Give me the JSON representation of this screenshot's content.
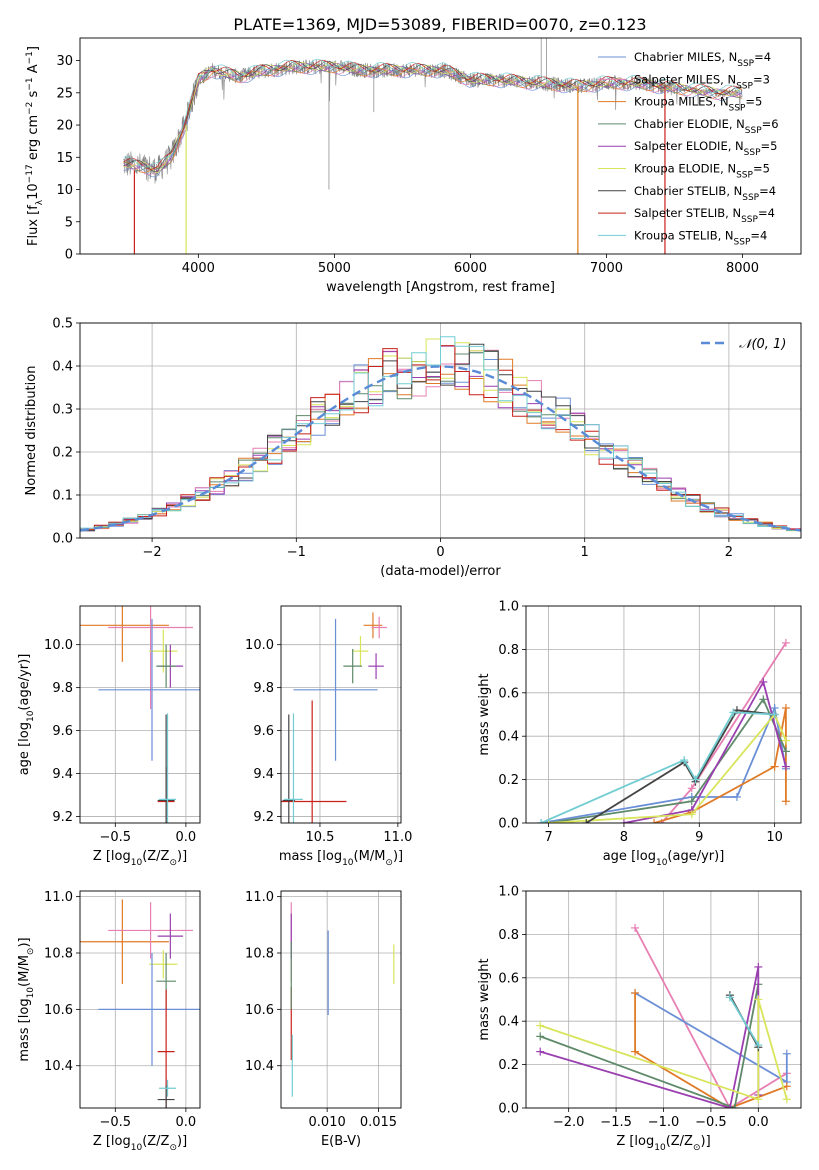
{
  "title": "PLATE=1369, MJD=53089, FIBERID=0070, z=0.123",
  "colors": {
    "chabrier_miles": "#6b8fd6",
    "salpeter_miles": "#e77fb3",
    "kroupa_miles": "#e07a26",
    "chabrier_elodie": "#5f8a6a",
    "salpeter_elodie": "#9a3fb0",
    "kroupa_elodie": "#d8e55a",
    "chabrier_stelib": "#444444",
    "salpeter_stelib": "#c8201a",
    "kroupa_stelib": "#72cdd3",
    "gaussian": "#5a8bd6",
    "grid": "#b0b0b0"
  },
  "chart_data": [
    {
      "id": "spectrum",
      "type": "line",
      "xlabel": "wavelength [Angstrom, rest frame]",
      "ylabel": "Flux [fλ10⁻¹⁷ erg cm⁻² s⁻¹ A⁻¹]",
      "xlim": [
        3130,
        8430
      ],
      "ylim": [
        0,
        33.5
      ],
      "xticks": [
        4000,
        5000,
        6000,
        7000,
        8000
      ],
      "yticks": [
        0,
        5,
        10,
        15,
        20,
        25,
        30
      ],
      "legend_position": "top-right",
      "legend": [
        "Chabrier MILES, N_SSP=4",
        "Salpeter MILES, N_SSP=3",
        "Kroupa MILES, N_SSP=5",
        "Chabrier ELODIE, N_SSP=6",
        "Salpeter ELODIE, N_SSP=5",
        "Kroupa ELODIE, N_SSP=5",
        "Chabrier STELIB, N_SSP=4",
        "Salpeter STELIB, N_SSP=4",
        "Kroupa STELIB, N_SSP=4"
      ],
      "observed_envelope": {
        "x": [
          3450,
          3600,
          3700,
          3800,
          3900,
          4000,
          4100,
          4300,
          4500,
          4700,
          5000,
          5200,
          5400,
          5600,
          5800,
          6000,
          6200,
          6500,
          6800,
          7000,
          7200,
          7400,
          7600,
          7800,
          8000
        ],
        "y": [
          14.0,
          13.5,
          13.0,
          15.0,
          20.0,
          27.0,
          28.5,
          27.5,
          28.5,
          29.0,
          29.0,
          28.5,
          28.5,
          28.5,
          28.5,
          27.0,
          27.0,
          26.5,
          26.0,
          26.5,
          26.5,
          26.0,
          25.5,
          25.0,
          25.0
        ]
      },
      "model_dropouts": [
        {
          "model": "salpeter_stelib",
          "x": 3530,
          "y_min": 0,
          "y_max": 13
        },
        {
          "model": "kroupa_elodie",
          "x": 3910,
          "y_min": 0,
          "y_max": 20
        },
        {
          "model": "kroupa_elodie",
          "x": 6790,
          "y_min": 0,
          "y_max": 26
        },
        {
          "model": "kroupa_miles",
          "x": 6790,
          "y_min": 0,
          "y_max": 26
        },
        {
          "model": "salpeter_stelib",
          "x": 7430,
          "y_min": 0,
          "y_max": 26
        }
      ]
    },
    {
      "id": "residuals",
      "type": "line",
      "xlabel": "(data-model)/error",
      "ylabel": "Normed distribution",
      "xlim": [
        -2.5,
        2.5
      ],
      "ylim": [
        0,
        0.5
      ],
      "xticks": [
        -2,
        -1,
        0,
        1,
        2
      ],
      "yticks": [
        0.0,
        0.1,
        0.2,
        0.3,
        0.4,
        0.5
      ],
      "legend": [
        "𝒩(0, 1)"
      ],
      "legend_position": "top-right"
    },
    {
      "id": "age_vs_z",
      "type": "scatter",
      "xlabel": "Z [log₁₀(Z/Z⊙)]",
      "ylabel": "age  [log₁₀(age/yr)]",
      "xlim": [
        -0.75,
        0.1
      ],
      "ylim": [
        9.17,
        10.18
      ],
      "xticks": [
        -0.5,
        0.0
      ],
      "yticks": [
        9.2,
        9.4,
        9.6,
        9.8,
        10.0
      ],
      "points": [
        {
          "model": "kroupa_miles",
          "x": -0.45,
          "xerr": 0.33,
          "y": 10.09,
          "yerr": 0.17
        },
        {
          "model": "salpeter_miles",
          "x": -0.25,
          "xerr": 0.3,
          "y": 10.08,
          "yerr": 0.38
        },
        {
          "model": "kroupa_elodie",
          "x": -0.16,
          "xerr": 0.1,
          "y": 9.97,
          "yerr": 0.1
        },
        {
          "model": "salpeter_elodie",
          "x": -0.11,
          "xerr": 0.09,
          "y": 9.9,
          "yerr": 0.1
        },
        {
          "model": "chabrier_miles",
          "x": -0.24,
          "xerr": 0.38,
          "y": 9.79,
          "yerr": 0.33
        },
        {
          "model": "chabrier_elodie",
          "x": -0.14,
          "xerr": 0.07,
          "y": 9.9,
          "yerr": 0.1
        },
        {
          "model": "salpeter_stelib",
          "x": -0.14,
          "xerr": 0.06,
          "y": 9.27,
          "yerr": 0.16
        },
        {
          "model": "chabrier_stelib",
          "x": -0.14,
          "xerr": 0.06,
          "y": 9.275,
          "yerr": 0.4
        },
        {
          "model": "kroupa_stelib",
          "x": -0.13,
          "xerr": 0.06,
          "y": 9.28,
          "yerr": 0.4
        }
      ]
    },
    {
      "id": "age_vs_mass",
      "type": "scatter",
      "xlabel": "mass [log₁₀(M/M⊙)]",
      "ylabel": "",
      "xlim": [
        10.25,
        11.02
      ],
      "ylim": [
        9.17,
        10.18
      ],
      "xticks": [
        10.5,
        11.0
      ],
      "yticks": [
        9.2,
        9.4,
        9.6,
        9.8,
        10.0
      ],
      "points": [
        {
          "model": "kroupa_miles",
          "x": 10.84,
          "xerr": 0.06,
          "y": 10.09,
          "yerr": 0.06
        },
        {
          "model": "salpeter_miles",
          "x": 10.88,
          "xerr": 0.05,
          "y": 10.08,
          "yerr": 0.05
        },
        {
          "model": "kroupa_elodie",
          "x": 10.76,
          "xerr": 0.05,
          "y": 9.97,
          "yerr": 0.07
        },
        {
          "model": "salpeter_elodie",
          "x": 10.86,
          "xerr": 0.05,
          "y": 9.9,
          "yerr": 0.06
        },
        {
          "model": "chabrier_miles",
          "x": 10.6,
          "xerr": 0.27,
          "y": 9.79,
          "yerr": 0.33
        },
        {
          "model": "chabrier_elodie",
          "x": 10.71,
          "xerr": 0.06,
          "y": 9.9,
          "yerr": 0.08
        },
        {
          "model": "salpeter_stelib",
          "x": 10.45,
          "xerr": 0.22,
          "y": 9.27,
          "yerr": 0.47
        },
        {
          "model": "chabrier_stelib",
          "x": 10.3,
          "xerr": 0.04,
          "y": 9.275,
          "yerr": 0.4
        },
        {
          "model": "kroupa_stelib",
          "x": 10.33,
          "xerr": 0.06,
          "y": 9.28,
          "yerr": 0.4
        }
      ]
    },
    {
      "id": "weight_vs_age",
      "type": "line",
      "xlabel": "age  [log₁₀(age/yr)]",
      "ylabel": "mass weight",
      "xlim": [
        6.7,
        10.35
      ],
      "ylim": [
        0,
        1
      ],
      "xticks": [
        7,
        8,
        9,
        10
      ],
      "yticks": [
        0.0,
        0.2,
        0.4,
        0.6,
        0.8,
        1.0
      ],
      "series": [
        {
          "model": "salpeter_miles",
          "x": [
            8.5,
            8.9,
            10.15
          ],
          "y": [
            0.0,
            0.16,
            0.83
          ]
        },
        {
          "model": "chabrier_miles",
          "x": [
            6.9,
            8.9,
            9.5,
            10.0,
            10.15
          ],
          "y": [
            0.0,
            0.12,
            0.12,
            0.53,
            0.25
          ]
        },
        {
          "model": "kroupa_miles",
          "x": [
            8.4,
            8.9,
            10.0,
            10.15,
            10.15
          ],
          "y": [
            0.0,
            0.05,
            0.26,
            0.53,
            0.1
          ]
        },
        {
          "model": "chabrier_elodie",
          "x": [
            7.0,
            8.9,
            9.85,
            10.15
          ],
          "y": [
            0.0,
            0.1,
            0.57,
            0.33
          ]
        },
        {
          "model": "salpeter_elodie",
          "x": [
            8.0,
            8.9,
            9.85,
            10.15
          ],
          "y": [
            0.0,
            0.06,
            0.65,
            0.26
          ]
        },
        {
          "model": "kroupa_elodie",
          "x": [
            7.0,
            8.9,
            10.0,
            10.15
          ],
          "y": [
            0.0,
            0.04,
            0.5,
            0.38
          ]
        },
        {
          "model": "chabrier_stelib",
          "x": [
            7.5,
            8.8,
            8.95,
            9.5,
            10.0
          ],
          "y": [
            0.0,
            0.28,
            0.19,
            0.52,
            0.5
          ]
        },
        {
          "model": "kroupa_stelib",
          "x": [
            6.9,
            8.8,
            8.95,
            9.45,
            10.0
          ],
          "y": [
            0.0,
            0.29,
            0.2,
            0.51,
            0.5
          ]
        }
      ]
    },
    {
      "id": "mass_vs_z",
      "type": "scatter",
      "xlabel": "Z [log₁₀(Z/Z⊙)]",
      "ylabel": "mass [log₁₀(M/M⊙)]",
      "xlim": [
        -0.75,
        0.1
      ],
      "ylim": [
        10.25,
        11.02
      ],
      "xticks": [
        -0.5,
        0.0
      ],
      "yticks": [
        10.4,
        10.6,
        10.8,
        11.0
      ],
      "points": [
        {
          "model": "kroupa_miles",
          "x": -0.45,
          "xerr": 0.33,
          "y": 10.84,
          "yerr": 0.15
        },
        {
          "model": "salpeter_miles",
          "x": -0.25,
          "xerr": 0.3,
          "y": 10.88,
          "yerr": 0.1
        },
        {
          "model": "kroupa_elodie",
          "x": -0.16,
          "xerr": 0.1,
          "y": 10.76,
          "yerr": 0.05
        },
        {
          "model": "salpeter_elodie",
          "x": -0.11,
          "xerr": 0.09,
          "y": 10.86,
          "yerr": 0.08
        },
        {
          "model": "chabrier_miles",
          "x": -0.24,
          "xerr": 0.38,
          "y": 10.6,
          "yerr": 0.2
        },
        {
          "model": "chabrier_elodie",
          "x": -0.14,
          "xerr": 0.07,
          "y": 10.7,
          "yerr": 0.1
        },
        {
          "model": "salpeter_stelib",
          "x": -0.14,
          "xerr": 0.06,
          "y": 10.45,
          "yerr": 0.22
        },
        {
          "model": "chabrier_stelib",
          "x": -0.14,
          "xerr": 0.06,
          "y": 10.28,
          "yerr": 0.05
        },
        {
          "model": "kroupa_stelib",
          "x": -0.13,
          "xerr": 0.06,
          "y": 10.32,
          "yerr": 0.03
        }
      ]
    },
    {
      "id": "mass_vs_ebv",
      "type": "scatter",
      "xlabel": "E(B-V)",
      "ylabel": "",
      "xlim": [
        0.0055,
        0.0172
      ],
      "ylim": [
        10.25,
        11.02
      ],
      "xticks": [
        0.01,
        0.015
      ],
      "yticks": [
        10.4,
        10.6,
        10.8,
        11.0
      ],
      "points": [
        {
          "model": "salpeter_miles",
          "x": 0.0065,
          "y": 10.84,
          "yerr": 0.14
        },
        {
          "model": "salpeter_elodie",
          "x": 0.0065,
          "y": 10.86,
          "yerr": 0.08
        },
        {
          "model": "salpeter_stelib",
          "x": 0.0065,
          "y": 10.55,
          "yerr": 0.13
        },
        {
          "model": "chabrier_elodie",
          "x": 0.0065,
          "y": 10.72,
          "yerr": 0.12
        },
        {
          "model": "kroupa_stelib",
          "x": 0.0066,
          "y": 10.4,
          "yerr": 0.11
        },
        {
          "model": "chabrier_miles",
          "x": 0.0101,
          "y": 10.73,
          "yerr": 0.15
        },
        {
          "model": "kroupa_elodie",
          "x": 0.0165,
          "y": 10.76,
          "yerr": 0.07
        }
      ]
    },
    {
      "id": "weight_vs_z",
      "type": "line",
      "xlabel": "Z [log₁₀(Z/Z⊙)]",
      "ylabel": "mass weight",
      "xlim": [
        -2.45,
        0.45
      ],
      "ylim": [
        0,
        1
      ],
      "xticks": [
        -2.0,
        -1.5,
        -1.0,
        -0.5,
        0.0
      ],
      "yticks": [
        0.0,
        0.2,
        0.4,
        0.6,
        0.8,
        1.0
      ],
      "series": [
        {
          "model": "salpeter_miles",
          "x": [
            -1.3,
            -0.3,
            0.3
          ],
          "y": [
            0.83,
            0.0,
            0.16
          ]
        },
        {
          "model": "chabrier_miles",
          "x": [
            -1.3,
            0.3,
            0.3
          ],
          "y": [
            0.53,
            0.12,
            0.25
          ]
        },
        {
          "model": "kroupa_miles",
          "x": [
            -1.3,
            -1.3,
            -0.3,
            0.3
          ],
          "y": [
            0.53,
            0.26,
            0.0,
            0.1
          ]
        },
        {
          "model": "chabrier_elodie",
          "x": [
            -2.3,
            -0.25,
            0.0
          ],
          "y": [
            0.33,
            0.0,
            0.57
          ]
        },
        {
          "model": "salpeter_elodie",
          "x": [
            -2.3,
            -0.3,
            0.0,
            0.0
          ],
          "y": [
            0.26,
            0.0,
            0.65,
            0.06
          ]
        },
        {
          "model": "kroupa_elodie",
          "x": [
            -2.3,
            0.0,
            0.0,
            0.3
          ],
          "y": [
            0.38,
            0.04,
            0.5,
            0.04
          ]
        },
        {
          "model": "chabrier_stelib",
          "x": [
            -0.3,
            0.0
          ],
          "y": [
            0.52,
            0.28
          ]
        },
        {
          "model": "kroupa_stelib",
          "x": [
            -0.3,
            0.0
          ],
          "y": [
            0.51,
            0.29
          ]
        }
      ]
    }
  ]
}
